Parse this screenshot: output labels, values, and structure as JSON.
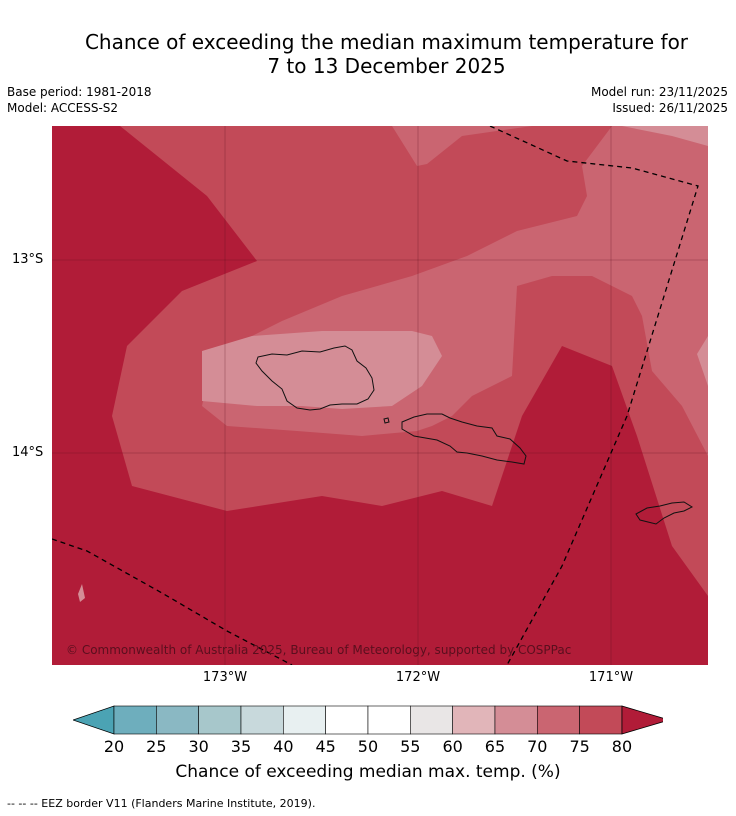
{
  "title": {
    "line1": "Chance of exceeding the median maximum temperature for",
    "line2": "7 to 13 December 2025"
  },
  "meta": {
    "base_period": "Base period: 1981-2018",
    "model": "Model: ACCESS-S2",
    "model_run": "Model run: 23/11/2025",
    "issued": "Issued: 26/11/2025"
  },
  "map": {
    "lat_labels": [
      "13°S",
      "14°S"
    ],
    "lon_labels": [
      "173°W",
      "172°W",
      "171°W"
    ],
    "copyright": "© Commonwealth of Australia 2025, Bureau of Meteorology, supported by COSPPac",
    "colors": {
      "p80": "#b11c38",
      "p75": "#c24a58",
      "p70": "#ca6571",
      "p65": "#d48d96",
      "coast": "#111111",
      "eez": "#000000"
    }
  },
  "legend": {
    "ticks": [
      "20",
      "25",
      "30",
      "35",
      "40",
      "45",
      "50",
      "55",
      "60",
      "65",
      "70",
      "75",
      "80"
    ],
    "colors": [
      "#4ba3b4",
      "#6eaebd",
      "#8ab8c3",
      "#a7c7cb",
      "#c8d9dc",
      "#e8f0f1",
      "#ffffff",
      "#ffffff",
      "#e9e6e6",
      "#e1b5b9",
      "#d48d96",
      "#ca6571",
      "#c24a58",
      "#b11c38"
    ],
    "label": "Chance of exceeding median max. temp. (%)"
  },
  "footer": "--  --  -- EEZ border V11 (Flanders Marine Institute, 2019)."
}
